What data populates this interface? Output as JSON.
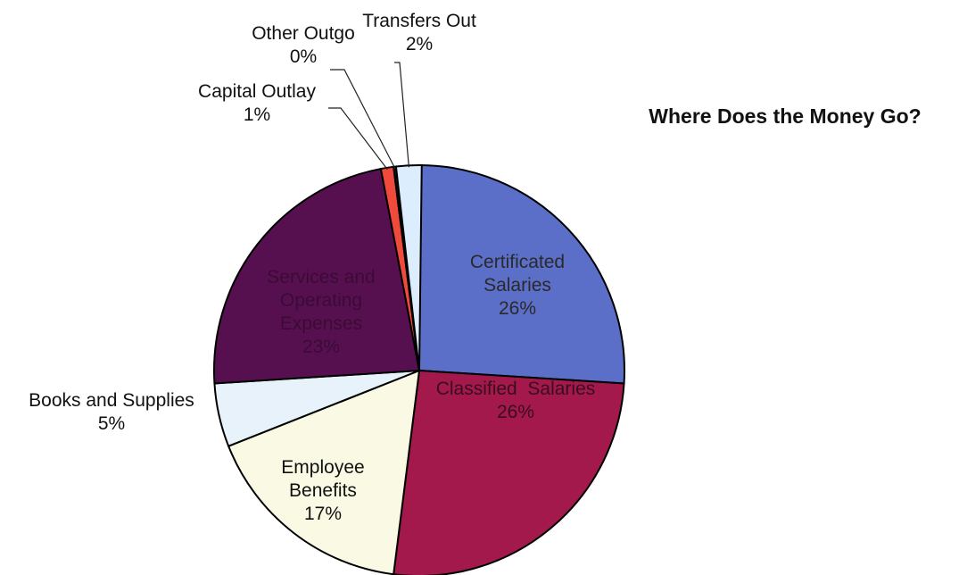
{
  "chart_data": {
    "type": "pie",
    "title": "Where Does the Money Go?",
    "slices": [
      {
        "name": "Certificated Salaries",
        "label_lines": [
          "Certificated",
          "Salaries"
        ],
        "value": 26,
        "value_label": "26%",
        "color": "#5b6ec8",
        "label_color": "#2a2a2a"
      },
      {
        "name": "Classified Salaries",
        "label_lines": [
          "Classified  Salaries"
        ],
        "value": 26,
        "value_label": "26%",
        "color": "#a3194c",
        "label_color": "#3a0d1c"
      },
      {
        "name": "Employee Benefits",
        "label_lines": [
          "Employee",
          "Benefits"
        ],
        "value": 17,
        "value_label": "17%",
        "color": "#fafae4",
        "label_color": "#111111"
      },
      {
        "name": "Books and Supplies",
        "label_lines": [
          "Books and Supplies"
        ],
        "value": 5,
        "value_label": "5%",
        "color": "#e8f2fb",
        "label_color": "#111111"
      },
      {
        "name": "Services and Operating Expenses",
        "label_lines": [
          "Services and",
          "Operating",
          "Expenses"
        ],
        "value": 23,
        "value_label": "23%",
        "color": "#57104f",
        "label_color": "#3b0b36"
      },
      {
        "name": "Capital Outlay",
        "label_lines": [
          "Capital Outlay"
        ],
        "value": 1,
        "value_label": "1%",
        "color": "#f04a3c",
        "label_color": "#111111"
      },
      {
        "name": "Other Outgo",
        "label_lines": [
          "Other Outgo"
        ],
        "value": 0,
        "value_label": "0%",
        "color": "#1a1a1a",
        "label_color": "#111111"
      },
      {
        "name": "Transfers Out",
        "label_lines": [
          "Transfers Out"
        ],
        "value": 2,
        "value_label": "2%",
        "color": "#dceefd",
        "label_color": "#111111"
      }
    ]
  }
}
